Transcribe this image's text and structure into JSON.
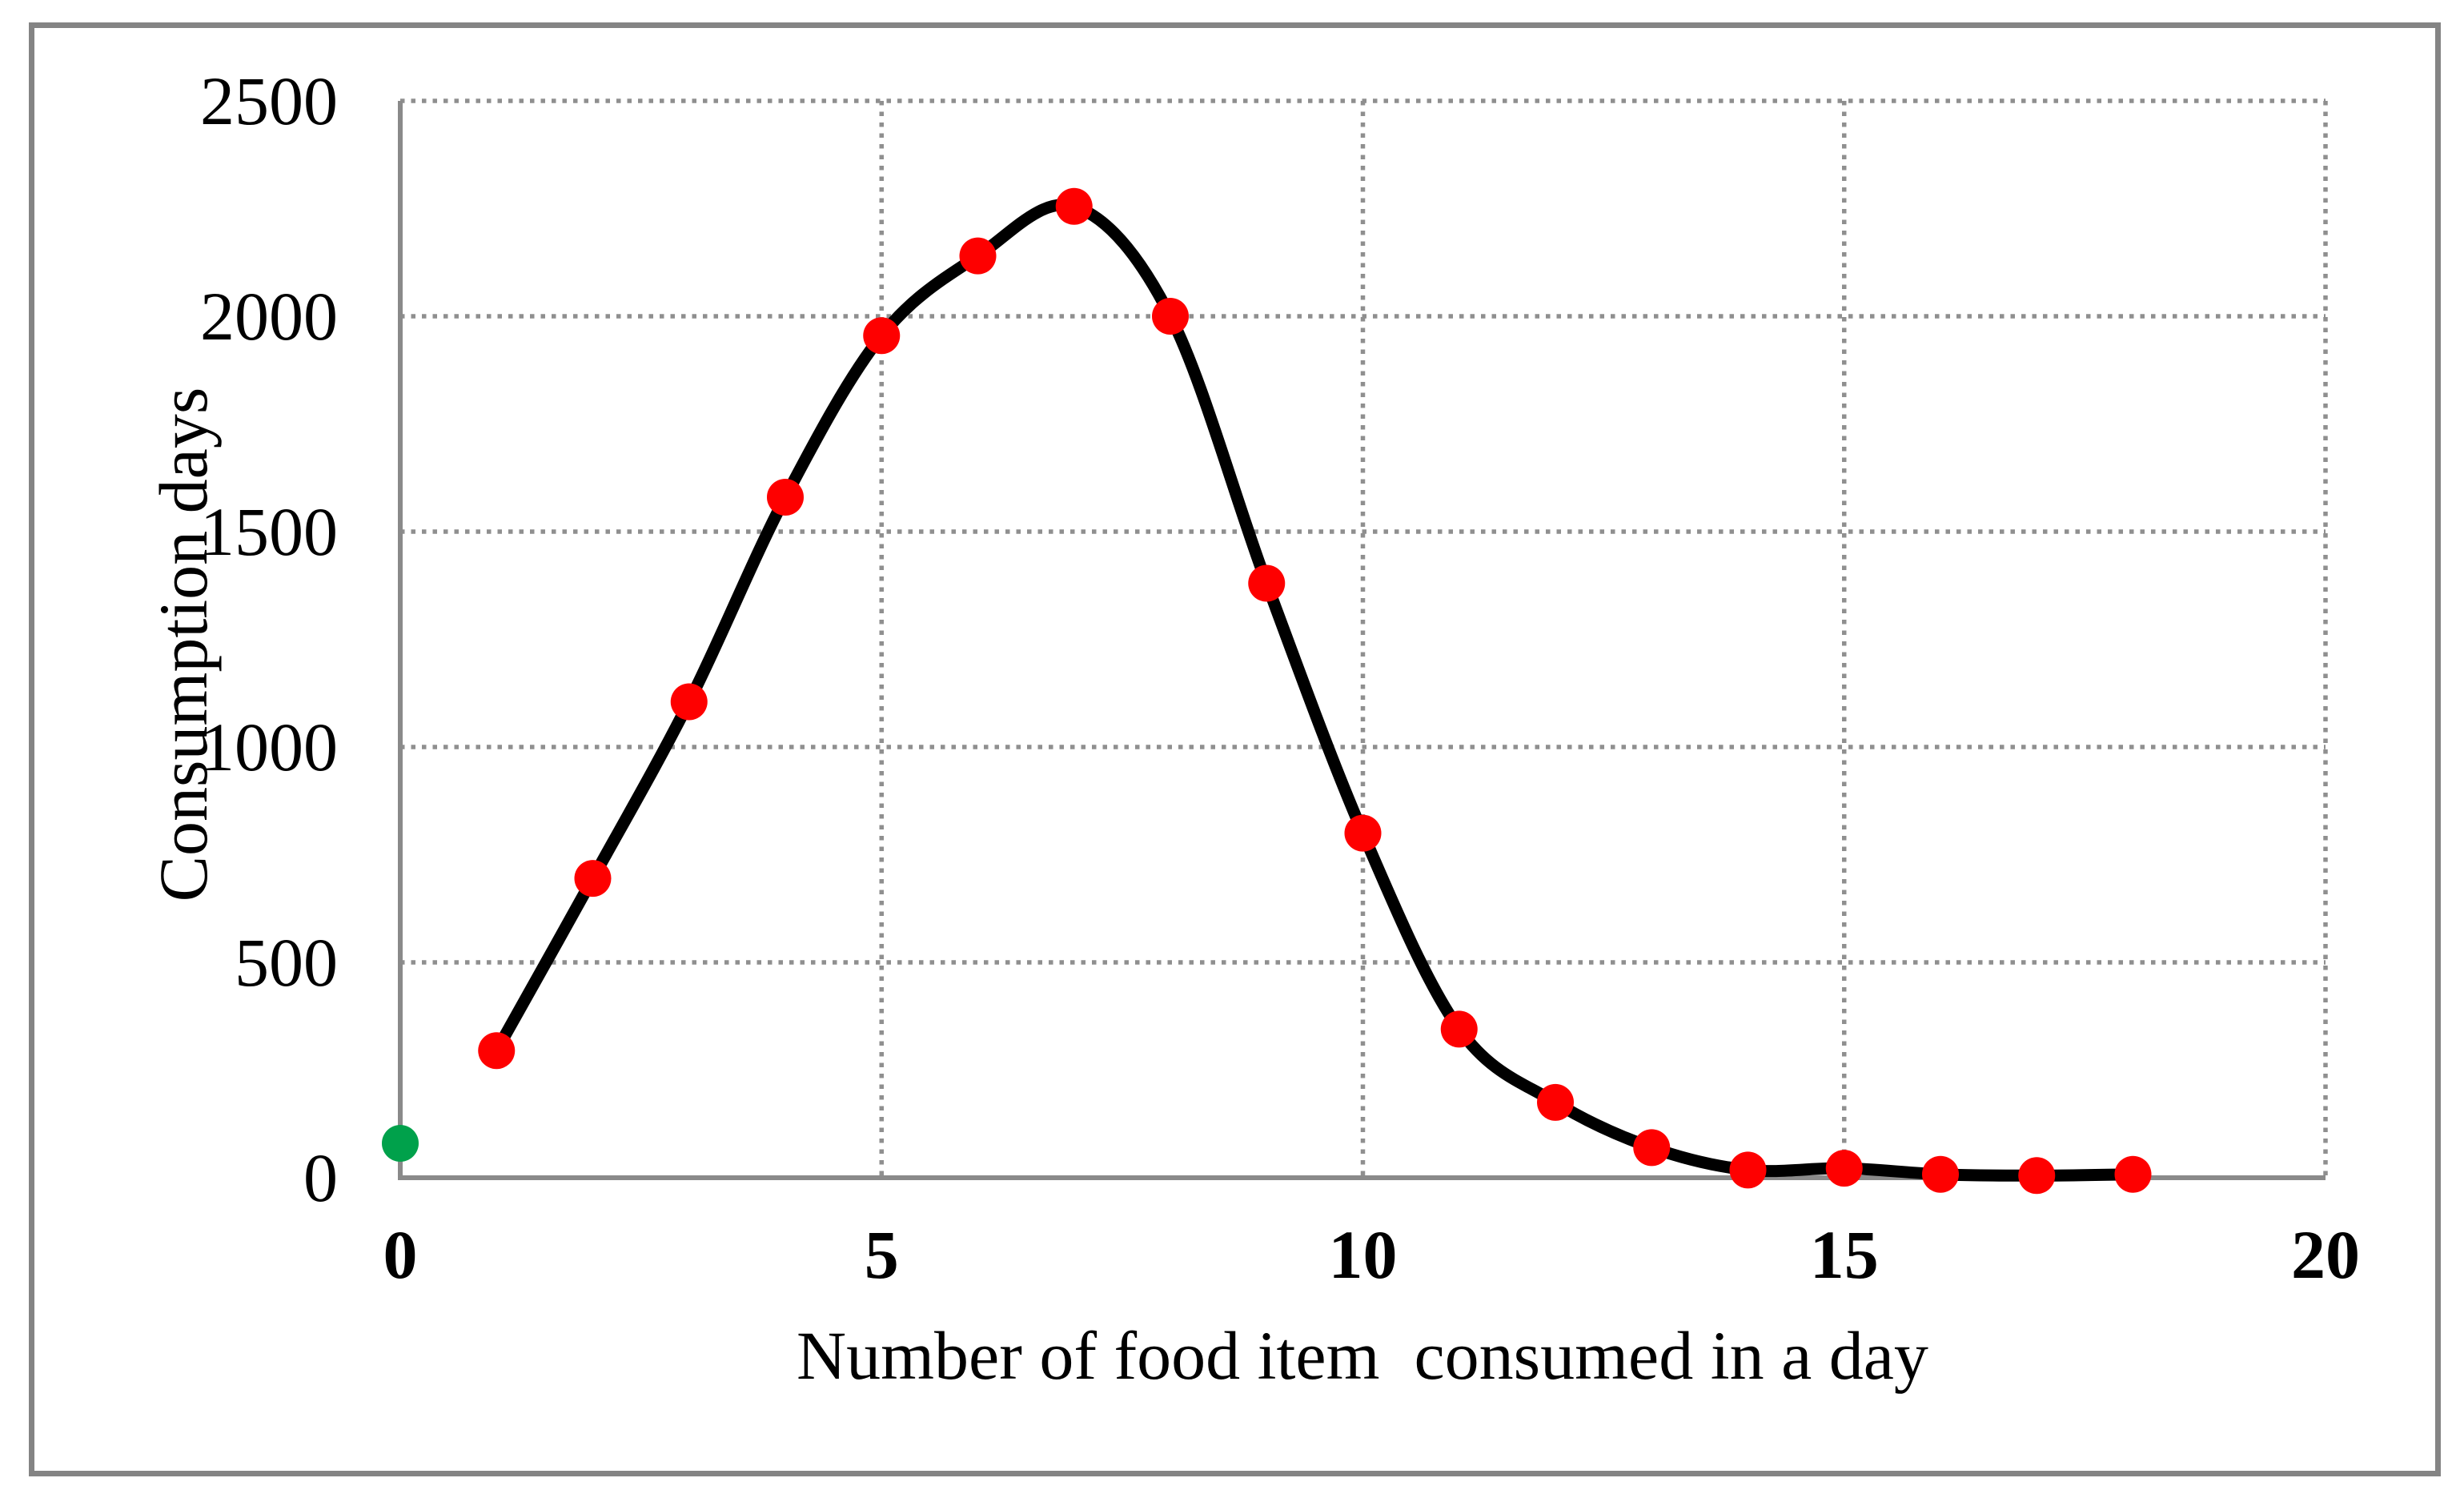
{
  "figure": {
    "background": "#FFFFFF",
    "border_color": "#848484"
  },
  "chart_data": {
    "type": "line",
    "title": "",
    "xlabel": "Number of food item  consumed in a day",
    "ylabel": "Consumption days",
    "xlim": [
      0,
      20
    ],
    "ylim": [
      0,
      2500
    ],
    "x_ticks": [
      0,
      5,
      10,
      15,
      20
    ],
    "y_ticks": [
      0,
      500,
      1000,
      1500,
      2000,
      2500
    ],
    "grid": "dotted",
    "grid_color": "#8F8F8F",
    "axis_color": "#8A8A8A",
    "legend_position": "none",
    "series": [
      {
        "name": "consumption-days-curve",
        "smooth": true,
        "line_color": "#000000",
        "line_width": 15,
        "marker_color": "#FE0000",
        "marker_radius": 23,
        "x": [
          1,
          2,
          3,
          4,
          5,
          6,
          7,
          8,
          9,
          10,
          11,
          12,
          13,
          14,
          15,
          16,
          17,
          18
        ],
        "values": [
          295,
          695,
          1105,
          1580,
          1955,
          2140,
          2255,
          2000,
          1380,
          800,
          345,
          175,
          70,
          18,
          22,
          8,
          5,
          8
        ]
      },
      {
        "name": "zero-items-point",
        "smooth": false,
        "line_color": "none",
        "line_width": 0,
        "marker_color": "#00A14B",
        "marker_radius": 23,
        "x": [
          0
        ],
        "values": [
          80
        ]
      }
    ]
  }
}
